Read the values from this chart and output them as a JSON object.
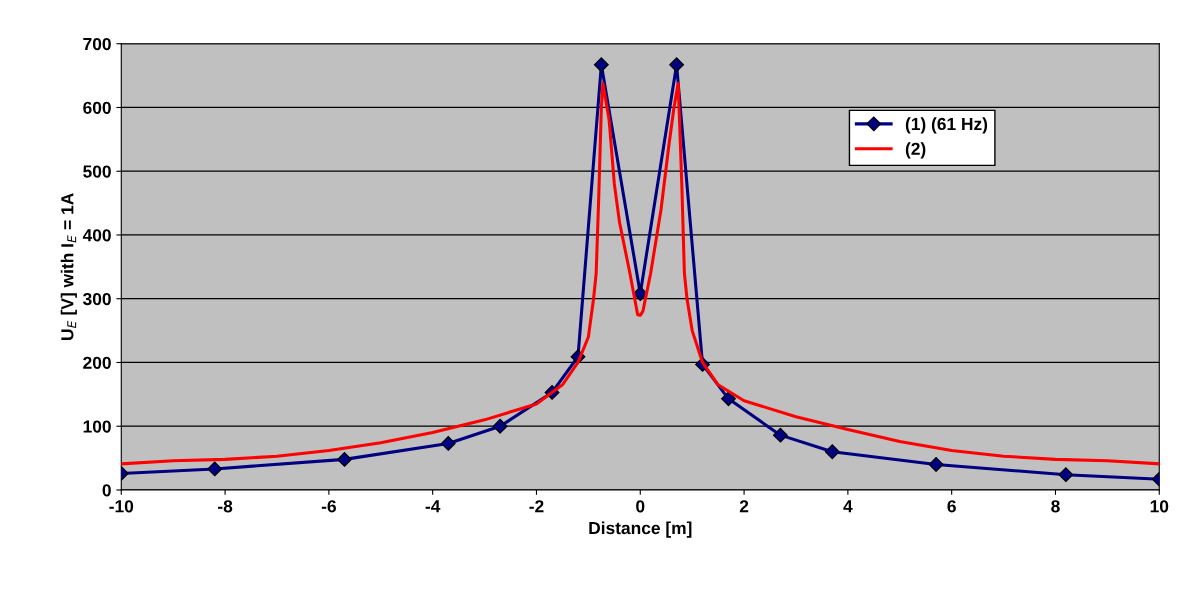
{
  "chart_data": {
    "type": "line",
    "xlabel": "Distance [m]",
    "ylabel": "U$_{E}$ [V] with I$_{E}$ = 1A",
    "xlim": [
      -10,
      10
    ],
    "xticks": [
      -10,
      -8,
      -6,
      -4,
      -2,
      0,
      2,
      4,
      6,
      8,
      10
    ],
    "ylim": [
      0,
      700
    ],
    "yticks": [
      0,
      100,
      200,
      300,
      400,
      500,
      600,
      700
    ],
    "grid": "y",
    "legend": "top right",
    "series": [
      {
        "name": "(1) (61 Hz)",
        "color": "#000080",
        "marker": "diamond",
        "x": [
          -10,
          -8.2,
          -5.7,
          -3.7,
          -2.7,
          -1.7,
          -1.2,
          -0.75,
          0,
          0.7,
          1.2,
          1.7,
          2.7,
          3.7,
          5.7,
          8.2,
          10
        ],
        "values": [
          26,
          33,
          48,
          73,
          100,
          153,
          209,
          667,
          308,
          667,
          197,
          143,
          86,
          60,
          40,
          24,
          17
        ]
      },
      {
        "name": "(2)",
        "color": "#ff0000",
        "marker": "none",
        "x": [
          -10,
          -9,
          -8,
          -7,
          -6,
          -5,
          -4,
          -3,
          -2,
          -1.5,
          -1.2,
          -1,
          -0.9,
          -0.85,
          -0.8,
          -0.75,
          -0.72,
          -0.6,
          -0.5,
          -0.4,
          -0.2,
          -0.05,
          0,
          0.05,
          0.2,
          0.4,
          0.55,
          0.65,
          0.73,
          0.8,
          0.85,
          0.9,
          1,
          1.2,
          1.5,
          2,
          3,
          4,
          5,
          6,
          7,
          8,
          9,
          10
        ],
        "values": [
          41,
          46,
          48,
          53,
          62,
          74,
          90,
          110,
          135,
          165,
          200,
          240,
          300,
          340,
          460,
          600,
          638,
          580,
          480,
          420,
          340,
          275,
          274,
          280,
          340,
          440,
          540,
          600,
          638,
          480,
          340,
          300,
          250,
          200,
          165,
          140,
          115,
          95,
          76,
          62,
          53,
          48,
          46,
          41
        ]
      }
    ]
  }
}
